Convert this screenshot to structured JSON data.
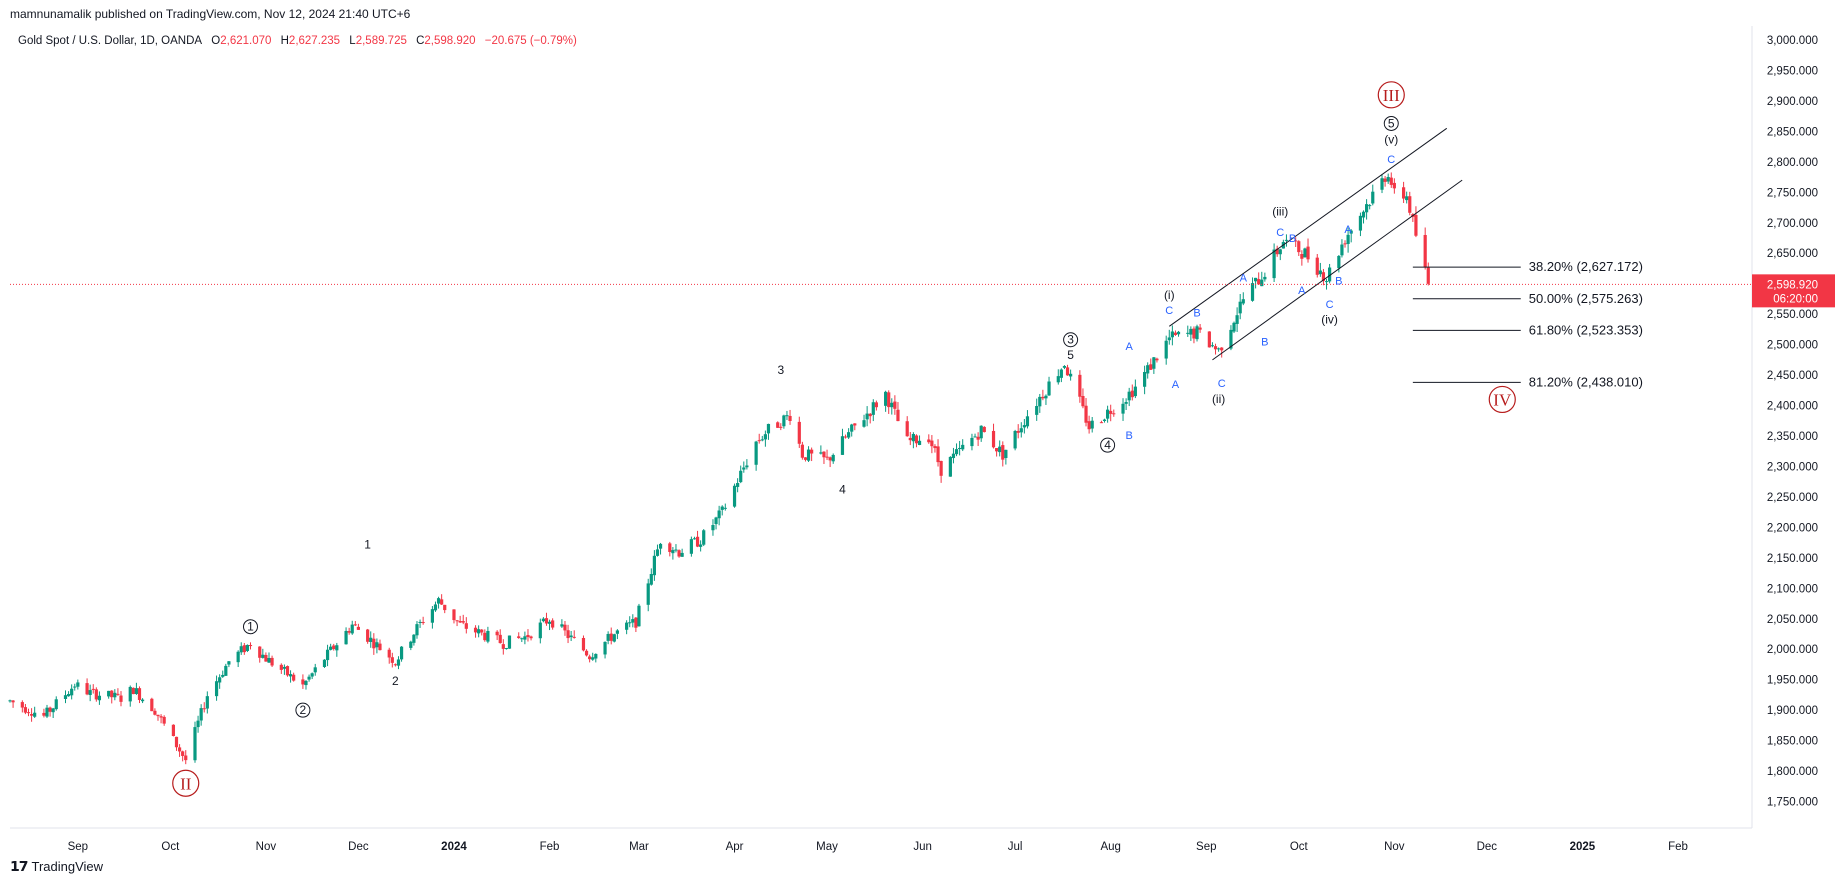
{
  "header": {
    "publisher": "mamnunamalik published on TradingView.com, Nov 12, 2024 21:40 UTC+6"
  },
  "legend": {
    "symbol": "Gold Spot / U.S. Dollar, 1D, OANDA",
    "open_label": "O",
    "open": "2,621.070",
    "high_label": "H",
    "high": "2,627.235",
    "low_label": "L",
    "low": "2,589.725",
    "close_label": "C",
    "close": "2,598.920",
    "change": "−20.675 (−0.79%)"
  },
  "footer": {
    "brand": "TradingView"
  },
  "colors": {
    "up": "#089981",
    "down": "#f23645",
    "wave_red": "#b71c1c",
    "blue": "#2962ff",
    "grid": "#ffffff"
  },
  "chart_data": {
    "type": "candlestick",
    "title": "Gold Spot / U.S. Dollar, 1D, OANDA",
    "ylim": [
      1700,
      3000
    ],
    "y_ticks": [
      "3,000.000",
      "2,950.000",
      "2,900.000",
      "2,850.000",
      "2,800.000",
      "2,750.000",
      "2,700.000",
      "2,650.000",
      "2,600.000",
      "2,550.000",
      "2,500.000",
      "2,450.000",
      "2,400.000",
      "2,350.000",
      "2,300.000",
      "2,250.000",
      "2,200.000",
      "2,150.000",
      "2,100.000",
      "2,050.000",
      "2,000.000",
      "1,950.000",
      "1,900.000",
      "1,850.000",
      "1,800.000",
      "1,750.000"
    ],
    "x_ticks": [
      "Sep",
      "Oct",
      "Nov",
      "Dec",
      "2024",
      "Feb",
      "Mar",
      "Apr",
      "May",
      "Jun",
      "Jul",
      "Aug",
      "Sep",
      "Oct",
      "Nov",
      "Dec",
      "2025",
      "Feb"
    ],
    "x_tick_dates": [
      "2023-09-01",
      "2023-10-01",
      "2023-11-01",
      "2023-12-01",
      "2024-01-01",
      "2024-02-01",
      "2024-03-01",
      "2024-04-01",
      "2024-05-01",
      "2024-06-01",
      "2024-07-01",
      "2024-08-01",
      "2024-09-01",
      "2024-10-01",
      "2024-11-01",
      "2024-12-01",
      "2025-01-01",
      "2025-02-01"
    ],
    "last_price": "2,598.920",
    "countdown": "06:20:00",
    "price_path": [
      [
        "2023-08-10",
        1915
      ],
      [
        "2023-08-21",
        1890
      ],
      [
        "2023-08-31",
        1942
      ],
      [
        "2023-09-05",
        1928
      ],
      [
        "2023-09-15",
        1920
      ],
      [
        "2023-09-19",
        1935
      ],
      [
        "2023-09-26",
        1900
      ],
      [
        "2023-10-06",
        1818
      ],
      [
        "2023-10-13",
        1925
      ],
      [
        "2023-10-20",
        1980
      ],
      [
        "2023-10-27",
        2010
      ],
      [
        "2023-11-01",
        1985
      ],
      [
        "2023-11-13",
        1940
      ],
      [
        "2023-11-20",
        1985
      ],
      [
        "2023-11-29",
        2040
      ],
      [
        "2023-12-04",
        2020
      ],
      [
        "2023-12-13",
        1980
      ],
      [
        "2023-12-20",
        2035
      ],
      [
        "2023-12-27",
        2080
      ],
      [
        "2024-01-03",
        2040
      ],
      [
        "2024-01-17",
        2010
      ],
      [
        "2024-01-24",
        2020
      ],
      [
        "2024-02-01",
        2050
      ],
      [
        "2024-02-14",
        1990
      ],
      [
        "2024-02-22",
        2025
      ],
      [
        "2024-02-29",
        2045
      ],
      [
        "2024-03-08",
        2180
      ],
      [
        "2024-03-14",
        2160
      ],
      [
        "2024-03-21",
        2180
      ],
      [
        "2024-03-28",
        2225
      ],
      [
        "2024-04-08",
        2340
      ],
      [
        "2024-04-12",
        2360
      ],
      [
        "2024-04-19",
        2385
      ],
      [
        "2024-04-23",
        2320
      ],
      [
        "2024-05-01",
        2310
      ],
      [
        "2024-05-10",
        2365
      ],
      [
        "2024-05-20",
        2420
      ],
      [
        "2024-05-27",
        2340
      ],
      [
        "2024-06-03",
        2350
      ],
      [
        "2024-06-07",
        2295
      ],
      [
        "2024-06-20",
        2360
      ],
      [
        "2024-06-27",
        2320
      ],
      [
        "2024-07-05",
        2385
      ],
      [
        "2024-07-17",
        2470
      ],
      [
        "2024-07-25",
        2365
      ],
      [
        "2024-08-05",
        2410
      ],
      [
        "2024-08-09",
        2430
      ],
      [
        "2024-08-20",
        2510
      ],
      [
        "2024-08-29",
        2520
      ],
      [
        "2024-09-05",
        2490
      ],
      [
        "2024-09-13",
        2575
      ],
      [
        "2024-09-20",
        2620
      ],
      [
        "2024-09-26",
        2670
      ],
      [
        "2024-10-03",
        2650
      ],
      [
        "2024-10-10",
        2610
      ],
      [
        "2024-10-16",
        2675
      ],
      [
        "2024-10-23",
        2730
      ],
      [
        "2024-10-30",
        2785
      ],
      [
        "2024-11-01",
        2745
      ],
      [
        "2024-11-05",
        2745
      ],
      [
        "2024-11-07",
        2700
      ],
      [
        "2024-11-11",
        2620
      ],
      [
        "2024-11-12",
        2599
      ]
    ],
    "channel_lines": [
      {
        "x1": "2024-08-20",
        "y1": 2530,
        "x2": "2024-11-18",
        "y2": 2855
      },
      {
        "x1": "2024-09-03",
        "y1": 2475,
        "x2": "2024-11-23",
        "y2": 2770
      }
    ],
    "fib_levels": [
      {
        "label": "38.20% (2,627.172)",
        "value": 2627.172
      },
      {
        "label": "50.00% (2,575.263)",
        "value": 2575.263
      },
      {
        "label": "61.80% (2,523.353)",
        "value": 2523.353
      },
      {
        "label": "81.20% (2,438.010)",
        "value": 2438.01
      }
    ],
    "fib_x_range": [
      "2024-11-07",
      "2024-12-12"
    ],
    "wave_labels": [
      {
        "text": "II",
        "date": "2023-10-06",
        "price": 1780,
        "style": "red-circle"
      },
      {
        "text": "III",
        "date": "2024-10-31",
        "price": 2910,
        "style": "red-circle"
      },
      {
        "text": "IV",
        "date": "2024-12-06",
        "price": 2410,
        "style": "red-circle"
      },
      {
        "text": "1",
        "date": "2023-10-27",
        "price": 2037,
        "style": "circle"
      },
      {
        "text": "2",
        "date": "2023-11-13",
        "price": 1900,
        "style": "circle"
      },
      {
        "text": "3",
        "date": "2024-07-19",
        "price": 2508,
        "style": "circle"
      },
      {
        "text": "4",
        "date": "2024-07-31",
        "price": 2335,
        "style": "circle"
      },
      {
        "text": "5",
        "date": "2024-10-31",
        "price": 2863,
        "style": "circle"
      },
      {
        "text": "1",
        "date": "2023-12-04",
        "price": 2172,
        "style": "plain"
      },
      {
        "text": "2",
        "date": "2023-12-13",
        "price": 1948,
        "style": "plain"
      },
      {
        "text": "3",
        "date": "2024-04-16",
        "price": 2458,
        "style": "plain"
      },
      {
        "text": "4",
        "date": "2024-05-06",
        "price": 2262,
        "style": "plain"
      },
      {
        "text": "5",
        "date": "2024-07-19",
        "price": 2483,
        "style": "plain"
      },
      {
        "text": "(i)",
        "date": "2024-08-20",
        "price": 2583,
        "style": "paren"
      },
      {
        "text": "(ii)",
        "date": "2024-09-05",
        "price": 2412,
        "style": "paren"
      },
      {
        "text": "(iii)",
        "date": "2024-09-25",
        "price": 2720,
        "style": "paren"
      },
      {
        "text": "(iv)",
        "date": "2024-10-11",
        "price": 2543,
        "style": "paren"
      },
      {
        "text": "(v)",
        "date": "2024-10-31",
        "price": 2838,
        "style": "paren"
      },
      {
        "text": "A",
        "date": "2024-08-07",
        "price": 2498,
        "style": "blue"
      },
      {
        "text": "B",
        "date": "2024-08-07",
        "price": 2352,
        "style": "blue"
      },
      {
        "text": "A",
        "date": "2024-08-22",
        "price": 2435,
        "style": "blue"
      },
      {
        "text": "B",
        "date": "2024-08-29",
        "price": 2553,
        "style": "blue"
      },
      {
        "text": "C",
        "date": "2024-08-20",
        "price": 2557,
        "style": "blue"
      },
      {
        "text": "C",
        "date": "2024-09-06",
        "price": 2437,
        "style": "blue"
      },
      {
        "text": "A",
        "date": "2024-09-13",
        "price": 2610,
        "style": "blue"
      },
      {
        "text": "B",
        "date": "2024-09-20",
        "price": 2505,
        "style": "blue"
      },
      {
        "text": "C",
        "date": "2024-09-25",
        "price": 2685,
        "style": "blue"
      },
      {
        "text": "B",
        "date": "2024-09-29",
        "price": 2675,
        "style": "blue"
      },
      {
        "text": "A",
        "date": "2024-10-02",
        "price": 2590,
        "style": "blue"
      },
      {
        "text": "B",
        "date": "2024-10-14",
        "price": 2605,
        "style": "blue"
      },
      {
        "text": "C",
        "date": "2024-10-11",
        "price": 2567,
        "style": "blue"
      },
      {
        "text": "A",
        "date": "2024-10-17",
        "price": 2690,
        "style": "blue"
      },
      {
        "text": "C",
        "date": "2024-10-31",
        "price": 2805,
        "style": "blue"
      }
    ]
  }
}
